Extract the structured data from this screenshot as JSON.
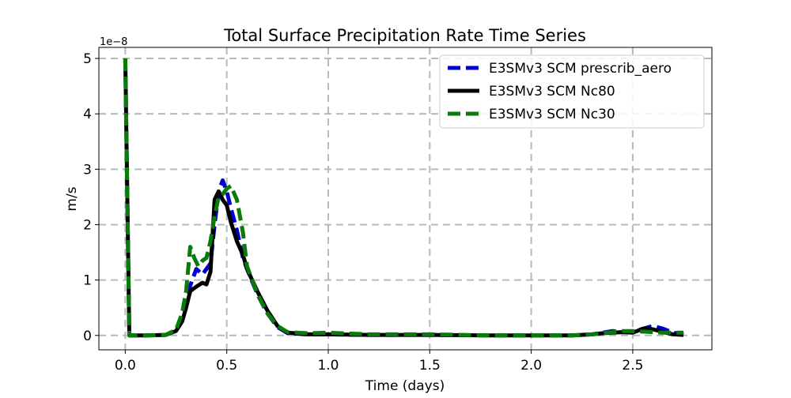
{
  "chart_data": {
    "type": "line",
    "title": "Total Surface Precipitation Rate Time Series",
    "xlabel": "Time (days)",
    "ylabel": "m/s",
    "y_offset_text": "1e−8",
    "xlim": [
      -0.13,
      2.89
    ],
    "ylim": [
      -2.6e-09,
      5.2e-08
    ],
    "xticks": [
      0.0,
      0.5,
      1.0,
      1.5,
      2.0,
      2.5
    ],
    "xtick_labels": [
      "0.0",
      "0.5",
      "1.0",
      "1.5",
      "2.0",
      "2.5"
    ],
    "yticks": [
      0,
      1e-08,
      2e-08,
      3e-08,
      4e-08,
      5e-08
    ],
    "ytick_labels": [
      "0",
      "1",
      "2",
      "3",
      "4",
      "5"
    ],
    "grid": true,
    "legend_position": "upper right",
    "series": [
      {
        "name": "E3SMv3 SCM prescrib_aero",
        "color": "#0000cc",
        "style": "dashed",
        "x": [
          0.0,
          0.02,
          0.05,
          0.1,
          0.2,
          0.25,
          0.28,
          0.3,
          0.32,
          0.35,
          0.38,
          0.4,
          0.42,
          0.44,
          0.46,
          0.48,
          0.5,
          0.52,
          0.55,
          0.58,
          0.6,
          0.65,
          0.7,
          0.75,
          0.8,
          0.9,
          1.0,
          1.2,
          1.5,
          1.8,
          2.0,
          2.2,
          2.3,
          2.35,
          2.4,
          2.45,
          2.5,
          2.55,
          2.6,
          2.65,
          2.7,
          2.75
        ],
        "y": [
          5e-08,
          0,
          0,
          0,
          1e-10,
          1e-09,
          3e-09,
          6e-09,
          9e-09,
          1.2e-08,
          1.1e-08,
          1.2e-08,
          1.3e-08,
          2e-08,
          2.6e-08,
          2.8e-08,
          2.6e-08,
          2.3e-08,
          1.9e-08,
          1.4e-08,
          1.2e-08,
          7.5e-09,
          4e-09,
          1.5e-09,
          4e-10,
          2e-10,
          2e-10,
          1e-10,
          1e-10,
          0,
          0,
          0,
          2e-10,
          5e-10,
          8e-10,
          6e-10,
          6e-10,
          1.2e-09,
          1.7e-09,
          1.2e-09,
          5e-10,
          2e-10
        ]
      },
      {
        "name": "E3SMv3 SCM Nc80",
        "color": "#000000",
        "style": "solid",
        "x": [
          0.0,
          0.02,
          0.05,
          0.1,
          0.2,
          0.25,
          0.28,
          0.3,
          0.32,
          0.35,
          0.38,
          0.4,
          0.42,
          0.44,
          0.46,
          0.48,
          0.5,
          0.52,
          0.55,
          0.58,
          0.6,
          0.65,
          0.7,
          0.75,
          0.8,
          0.9,
          1.0,
          1.2,
          1.5,
          1.8,
          2.0,
          2.2,
          2.3,
          2.35,
          2.4,
          2.45,
          2.5,
          2.55,
          2.6,
          2.65,
          2.7,
          2.75
        ],
        "y": [
          5e-08,
          0,
          0,
          0,
          1e-10,
          8e-10,
          2.5e-09,
          5e-09,
          8e-09,
          8.8e-09,
          9.5e-09,
          9.2e-09,
          1.15e-08,
          2.45e-08,
          2.6e-08,
          2.45e-08,
          2.35e-08,
          2.05e-08,
          1.7e-08,
          1.45e-08,
          1.2e-08,
          8e-09,
          4.5e-09,
          1.7e-09,
          5e-10,
          2e-10,
          2e-10,
          1e-10,
          1e-10,
          0,
          0,
          0,
          2e-10,
          4e-10,
          5e-10,
          6e-10,
          5e-10,
          1.2e-09,
          1.1e-09,
          6e-10,
          2e-10,
          1e-10
        ]
      },
      {
        "name": "E3SMv3 SCM Nc30",
        "color": "#0a7a0a",
        "style": "dashed",
        "x": [
          0.0,
          0.02,
          0.05,
          0.1,
          0.2,
          0.25,
          0.28,
          0.3,
          0.32,
          0.34,
          0.36,
          0.38,
          0.4,
          0.42,
          0.44,
          0.46,
          0.48,
          0.5,
          0.52,
          0.55,
          0.58,
          0.6,
          0.65,
          0.7,
          0.75,
          0.8,
          0.9,
          1.0,
          1.2,
          1.5,
          1.8,
          2.0,
          2.2,
          2.3,
          2.35,
          2.4,
          2.45,
          2.5,
          2.55,
          2.6,
          2.65,
          2.7,
          2.75
        ],
        "y": [
          5e-08,
          0,
          0,
          0,
          1e-10,
          1e-09,
          4e-09,
          8e-09,
          1.6e-08,
          1.4e-08,
          1.25e-08,
          1.35e-08,
          1.4e-08,
          1.7e-08,
          2.15e-08,
          2.5e-08,
          2.55e-08,
          2.65e-08,
          2.7e-08,
          2.45e-08,
          1.85e-08,
          1.25e-08,
          7.5e-09,
          4e-09,
          1.7e-09,
          6e-10,
          4e-10,
          5e-10,
          2e-10,
          2e-10,
          0,
          0,
          0,
          2e-10,
          4e-10,
          6e-10,
          8e-10,
          8e-10,
          7e-10,
          6e-10,
          5e-10,
          5e-10,
          5e-10
        ]
      }
    ]
  }
}
